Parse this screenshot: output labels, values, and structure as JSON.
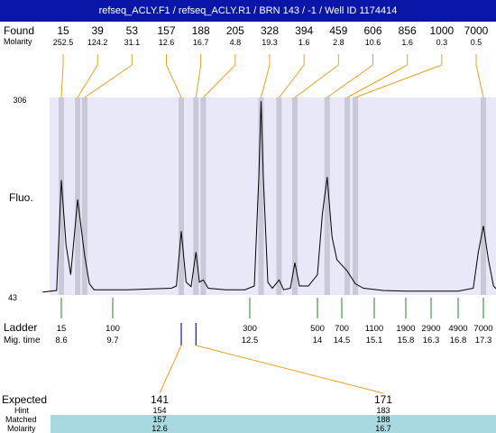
{
  "title": "refseq_ACLY.F1 / refseq_ACLY.R1 / BRN 143 / -1 / Well ID 1174414",
  "labels": {
    "found": "Found",
    "molarity": "Molarity",
    "fluo": "Fluo.",
    "ladder": "Ladder",
    "mig_time": "Mig. time",
    "expected": "Expected",
    "hint": "Hint",
    "matched": "Matched",
    "molarity_bottom": "Molarity"
  },
  "colors": {
    "title_bg": "#0a16a8",
    "plot_bg": "#e8e8f8",
    "band": "#c8c8d8",
    "found_line": "#f0a020",
    "ladder_tick": "#1a8a1a",
    "matched_tick": "#1010d0",
    "table_highlight": "#a8d8e0"
  },
  "chart_data": {
    "type": "line",
    "ylabel": "Fluo.",
    "y_tick_labels": [
      "306",
      "43"
    ],
    "ylim": [
      43,
      306
    ],
    "found_peaks": [
      {
        "size": "15",
        "molarity": "252.5",
        "mig_time": 8.6
      },
      {
        "size": "39",
        "molarity": "124.2",
        "mig_time": 8.95
      },
      {
        "size": "53",
        "molarity": "31.1",
        "mig_time": 9.1
      },
      {
        "size": "157",
        "molarity": "12.6",
        "mig_time": 11.1
      },
      {
        "size": "188",
        "molarity": "16.7",
        "mig_time": 11.4
      },
      {
        "size": "205",
        "molarity": "4.8",
        "mig_time": 11.55
      },
      {
        "size": "328",
        "molarity": "19.3",
        "mig_time": 12.75
      },
      {
        "size": "394",
        "molarity": "1.6",
        "mig_time": 13.15
      },
      {
        "size": "459",
        "molarity": "2.8",
        "mig_time": 13.5
      },
      {
        "size": "606",
        "molarity": "10.6",
        "mig_time": 14.2
      },
      {
        "size": "856",
        "molarity": "1.6",
        "mig_time": 14.6
      },
      {
        "size": "1000",
        "molarity": "0.3",
        "mig_time": 14.75
      },
      {
        "size": "7000",
        "molarity": "0.5",
        "mig_time": 17.3
      }
    ],
    "ladder": [
      {
        "size": "15",
        "mig_time": "8.6"
      },
      {
        "size": "100",
        "mig_time": "9.7"
      },
      {
        "size": "300",
        "mig_time": "12.5"
      },
      {
        "size": "500",
        "mig_time": "14"
      },
      {
        "size": "700",
        "mig_time": "14.5"
      },
      {
        "size": "1100",
        "mig_time": "15.1"
      },
      {
        "size": "1900",
        "mig_time": "15.8"
      },
      {
        "size": "2900",
        "mig_time": "16.3"
      },
      {
        "size": "4900",
        "mig_time": "16.8"
      },
      {
        "size": "7000",
        "mig_time": "17.3"
      }
    ],
    "trace": [
      [
        8.2,
        47
      ],
      [
        8.5,
        49
      ],
      [
        8.6,
        196
      ],
      [
        8.7,
        110
      ],
      [
        8.8,
        70
      ],
      [
        8.95,
        170
      ],
      [
        9.05,
        120
      ],
      [
        9.1,
        95
      ],
      [
        9.2,
        58
      ],
      [
        9.3,
        50
      ],
      [
        9.6,
        50
      ],
      [
        10.0,
        50
      ],
      [
        10.5,
        51
      ],
      [
        10.9,
        52
      ],
      [
        11.0,
        55
      ],
      [
        11.1,
        128
      ],
      [
        11.2,
        60
      ],
      [
        11.3,
        54
      ],
      [
        11.4,
        100
      ],
      [
        11.47,
        60
      ],
      [
        11.55,
        63
      ],
      [
        11.65,
        52
      ],
      [
        12.0,
        50
      ],
      [
        12.4,
        50
      ],
      [
        12.6,
        55
      ],
      [
        12.7,
        200
      ],
      [
        12.75,
        301
      ],
      [
        12.8,
        200
      ],
      [
        12.9,
        60
      ],
      [
        13.0,
        52
      ],
      [
        13.15,
        63
      ],
      [
        13.25,
        50
      ],
      [
        13.4,
        52
      ],
      [
        13.5,
        86
      ],
      [
        13.6,
        55
      ],
      [
        13.8,
        55
      ],
      [
        14.0,
        70
      ],
      [
        14.1,
        150
      ],
      [
        14.2,
        200
      ],
      [
        14.3,
        120
      ],
      [
        14.4,
        90
      ],
      [
        14.6,
        75
      ],
      [
        14.75,
        58
      ],
      [
        14.9,
        52
      ],
      [
        15.3,
        49
      ],
      [
        15.8,
        48
      ],
      [
        16.3,
        48
      ],
      [
        16.8,
        48
      ],
      [
        17.1,
        52
      ],
      [
        17.2,
        100
      ],
      [
        17.3,
        135
      ],
      [
        17.4,
        90
      ],
      [
        17.5,
        55
      ],
      [
        17.6,
        48
      ]
    ]
  },
  "peak_table": {
    "columns": [
      {
        "expected": "141",
        "hint": "154",
        "matched": "157",
        "molarity": "12.6"
      },
      {
        "expected": "171",
        "hint": "183",
        "matched": "188",
        "molarity": "16.7"
      }
    ]
  }
}
